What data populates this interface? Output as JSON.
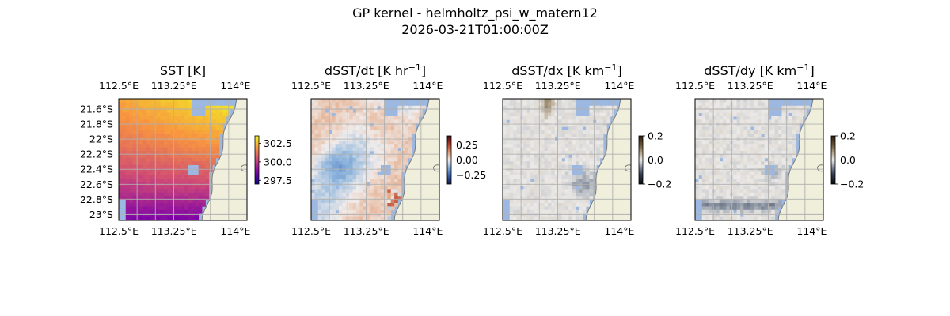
{
  "figure": {
    "title_line1": "GP kernel - helmholtz_psi_w_matern12",
    "title_line2": "2026-03-21T01:00:00Z"
  },
  "colors": {
    "land": "#efefdb",
    "coast": "#7a7a7a",
    "missing": "#9db8e0",
    "grid": "#b0b0b0"
  },
  "chart_data": [
    {
      "type": "heatmap",
      "title": "SST [K]",
      "title_sup": "",
      "title_suffix": "",
      "colormap": "plasma",
      "xticks": [
        "112.5°E",
        "113.25°E",
        "114°E"
      ],
      "yticks": [
        "21.6°S",
        "21.8°S",
        "22°S",
        "22.2°S",
        "22.4°S",
        "22.6°S",
        "22.8°S",
        "23°S"
      ],
      "xlim": [
        112.5,
        114.25
      ],
      "ylim": [
        -23.05,
        -21.45
      ],
      "colorbar": {
        "ticks": [
          "302.5",
          "300.0",
          "297.5"
        ],
        "range": [
          297.0,
          303.5
        ],
        "tick_values": [
          302.5,
          300.0,
          297.5
        ]
      },
      "grid": true,
      "show_left_labels": true
    },
    {
      "type": "heatmap",
      "title": "dSST/dt [K hr",
      "title_sup": "−1",
      "title_suffix": "]",
      "colormap": "balance",
      "xticks": [
        "112.5°E",
        "113.25°E",
        "114°E"
      ],
      "yticks": [],
      "xlim": [
        112.5,
        114.25
      ],
      "ylim": [
        -23.05,
        -21.45
      ],
      "colorbar": {
        "ticks": [
          "0.25",
          "0.00",
          "−0.25"
        ],
        "range": [
          -0.4,
          0.4
        ],
        "tick_values": [
          0.25,
          0.0,
          -0.25
        ]
      },
      "grid": true,
      "show_left_labels": false
    },
    {
      "type": "heatmap",
      "title": "dSST/dx [K km",
      "title_sup": "−1",
      "title_suffix": "]",
      "colormap": "diff",
      "xticks": [
        "112.5°E",
        "113.25°E",
        "114°E"
      ],
      "yticks": [],
      "xlim": [
        112.5,
        114.25
      ],
      "ylim": [
        -23.05,
        -21.45
      ],
      "colorbar": {
        "ticks": [
          "0.2",
          "0.0",
          "−0.2"
        ],
        "range": [
          -0.2,
          0.2
        ],
        "tick_values": [
          0.2,
          0.0,
          -0.2
        ]
      },
      "grid": true,
      "show_left_labels": false
    },
    {
      "type": "heatmap",
      "title": "dSST/dy [K km",
      "title_sup": "−1",
      "title_suffix": "]",
      "colormap": "diff",
      "xticks": [
        "112.5°E",
        "113.25°E",
        "114°E"
      ],
      "yticks": [],
      "xlim": [
        112.5,
        114.25
      ],
      "ylim": [
        -23.05,
        -21.45
      ],
      "colorbar": {
        "ticks": [
          "0.2",
          "0.0",
          "−0.2"
        ],
        "range": [
          -0.2,
          0.2
        ],
        "tick_values": [
          0.2,
          0.0,
          -0.2
        ]
      },
      "grid": true,
      "show_left_labels": false
    }
  ]
}
